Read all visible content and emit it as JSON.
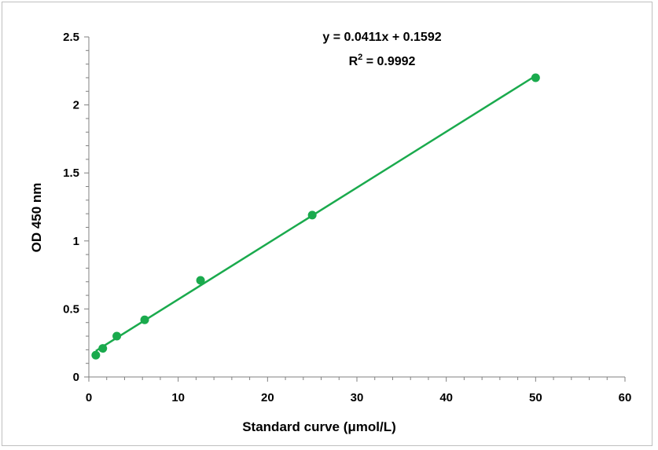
{
  "chart_data": {
    "type": "scatter",
    "xlabel": "Standard curve (μmol/L)",
    "ylabel": "OD 450 nm",
    "xlim": [
      0,
      60
    ],
    "ylim": [
      0,
      2.5
    ],
    "x_ticks": [
      0,
      10,
      20,
      30,
      40,
      50,
      60
    ],
    "y_ticks": [
      0,
      0.5,
      1,
      1.5,
      2,
      2.5
    ],
    "x_tick_labels": [
      "0",
      "10",
      "20",
      "30",
      "40",
      "50",
      "60"
    ],
    "y_tick_labels": [
      "0",
      "0.5",
      "1",
      "1.5",
      "2",
      "2.5"
    ],
    "grid": false,
    "legend": "none",
    "series": [
      {
        "x": [
          0.78,
          1.56,
          3.13,
          6.25,
          12.5,
          25,
          50
        ],
        "y": [
          0.16,
          0.21,
          0.3,
          0.42,
          0.71,
          1.19,
          2.2
        ],
        "color": "#1aaa4d"
      }
    ],
    "trendline": {
      "slope": 0.0411,
      "intercept": 0.1592,
      "x_range": [
        0.78,
        50
      ],
      "color": "#1aaa4d"
    },
    "annotations": {
      "equation": "y = 0.0411x + 0.1592",
      "r2_prefix": "R",
      "r2_sup": "2",
      "r2_value": " = 0.9992"
    }
  }
}
